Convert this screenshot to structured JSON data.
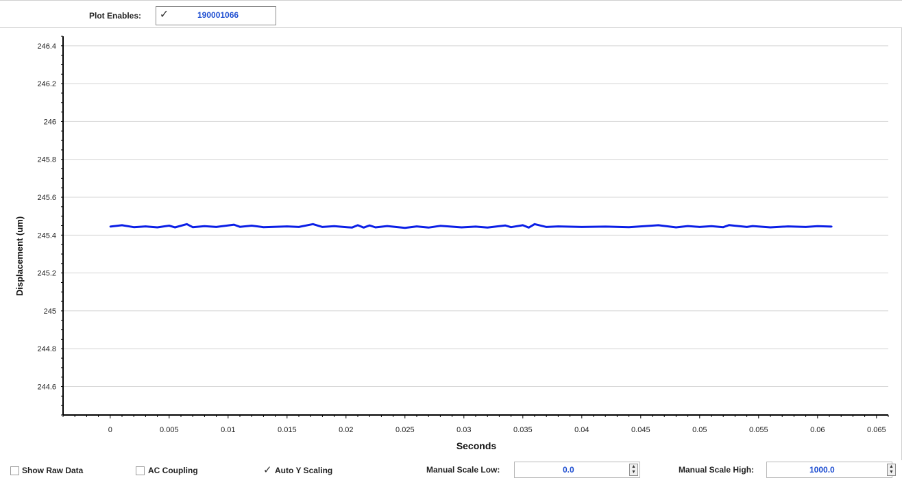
{
  "header": {
    "plot_enables_label": "Plot Enables:",
    "plot_enables_checked": true,
    "plot_enables_value": "190001066"
  },
  "controls": {
    "show_raw_data": {
      "label": "Show Raw Data",
      "checked": false
    },
    "ac_coupling": {
      "label": "AC Coupling",
      "checked": false
    },
    "auto_y_scaling": {
      "label": "Auto Y Scaling",
      "checked": true
    },
    "manual_scale_low": {
      "label": "Manual Scale Low:",
      "value": "0.0"
    },
    "manual_scale_high": {
      "label": "Manual Scale High:",
      "value": "1000.0"
    }
  },
  "colors": {
    "series": "#0a1ee6",
    "value_text": "#1f4fd1",
    "grid": "#d4d4d4"
  },
  "chart_data": {
    "type": "line",
    "title": "",
    "xlabel": "Seconds",
    "ylabel": "Displacement (um)",
    "xlim": [
      -0.004,
      0.066
    ],
    "ylim": [
      244.45,
      246.45
    ],
    "x_ticks": [
      0,
      0.005,
      0.01,
      0.015,
      0.02,
      0.025,
      0.03,
      0.035,
      0.04,
      0.045,
      0.05,
      0.055,
      0.06,
      0.065
    ],
    "x_tick_labels": [
      "0",
      "0.005",
      "0.01",
      "0.015",
      "0.02",
      "0.025",
      "0.03",
      "0.035",
      "0.04",
      "0.045",
      "0.05",
      "0.055",
      "0.06",
      "0.065"
    ],
    "y_ticks": [
      244.6,
      244.8,
      245,
      245.2,
      245.4,
      245.6,
      245.8,
      246,
      246.2,
      246.4
    ],
    "y_tick_labels": [
      "244.6",
      "244.8",
      "245",
      "245.2",
      "245.4",
      "245.6",
      "245.8",
      "246",
      "246.2",
      "246.4"
    ],
    "grid": "horizontal",
    "series": [
      {
        "x": [
          0,
          0.001,
          0.002,
          0.003,
          0.004,
          0.005,
          0.0055,
          0.0065,
          0.007,
          0.008,
          0.009,
          0.0105,
          0.011,
          0.012,
          0.013,
          0.015,
          0.016,
          0.0172,
          0.018,
          0.019,
          0.0205,
          0.021,
          0.0215,
          0.022,
          0.0225,
          0.0235,
          0.025,
          0.026,
          0.027,
          0.028,
          0.0298,
          0.031,
          0.032,
          0.0335,
          0.034,
          0.035,
          0.0355,
          0.036,
          0.037,
          0.038,
          0.04,
          0.042,
          0.044,
          0.0465,
          0.048,
          0.049,
          0.05,
          0.051,
          0.052,
          0.0525,
          0.054,
          0.0545,
          0.056,
          0.0575,
          0.059,
          0.06,
          0.0612
        ],
        "y": [
          245.445,
          245.452,
          245.442,
          245.446,
          245.441,
          245.45,
          245.441,
          245.458,
          245.442,
          245.447,
          245.443,
          245.455,
          245.444,
          245.45,
          245.442,
          245.446,
          245.443,
          245.458,
          245.443,
          245.447,
          245.44,
          245.452,
          245.44,
          245.451,
          245.441,
          245.448,
          245.438,
          245.446,
          245.44,
          245.449,
          245.441,
          245.445,
          245.44,
          245.451,
          245.442,
          245.452,
          245.44,
          245.458,
          245.443,
          245.446,
          245.443,
          245.445,
          245.442,
          245.452,
          245.441,
          245.448,
          245.443,
          245.447,
          245.442,
          245.453,
          245.443,
          245.448,
          245.441,
          245.446,
          245.443,
          245.447,
          245.445
        ]
      }
    ]
  }
}
